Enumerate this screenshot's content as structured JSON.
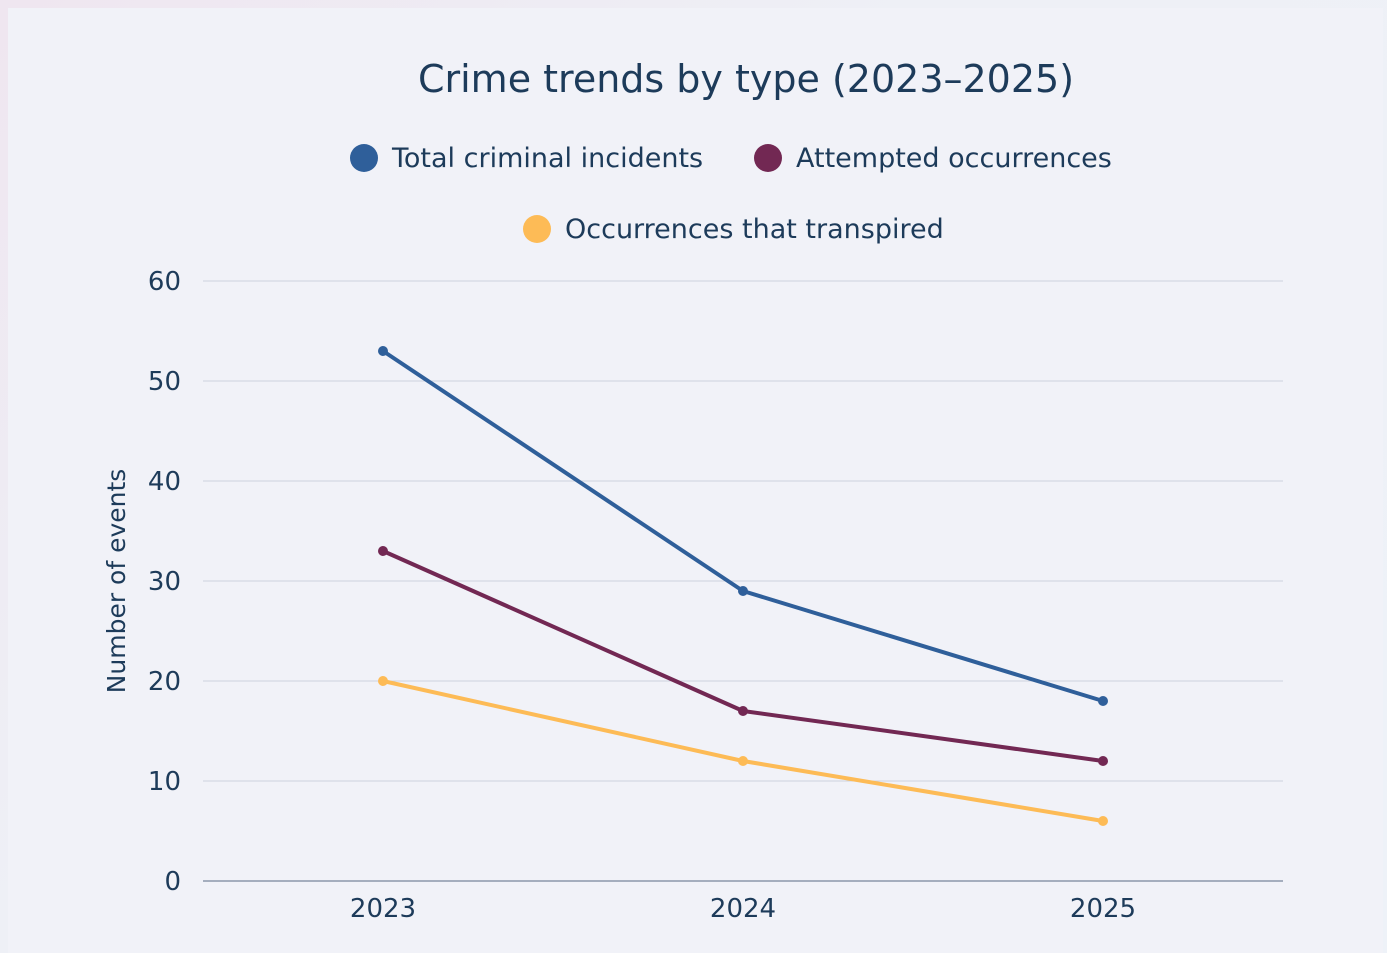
{
  "chart_data": {
    "type": "line",
    "title": "Crime trends by type (2023–2025)",
    "xlabel": "",
    "ylabel": "Number of events",
    "categories": [
      "2023",
      "2024",
      "2025"
    ],
    "ylim": [
      0,
      60
    ],
    "yticks": [
      0,
      10,
      20,
      30,
      40,
      50,
      60
    ],
    "grid": true,
    "legend_position": "top-center",
    "series": [
      {
        "name": "Total criminal incidents",
        "color": "#2f5f9a",
        "values": [
          53,
          29,
          18
        ]
      },
      {
        "name": "Attempted occurrences",
        "color": "#722853",
        "values": [
          33,
          17,
          12
        ]
      },
      {
        "name": "Occurrences that transpired",
        "color": "#fdbb56",
        "values": [
          20,
          12,
          6
        ]
      }
    ]
  }
}
